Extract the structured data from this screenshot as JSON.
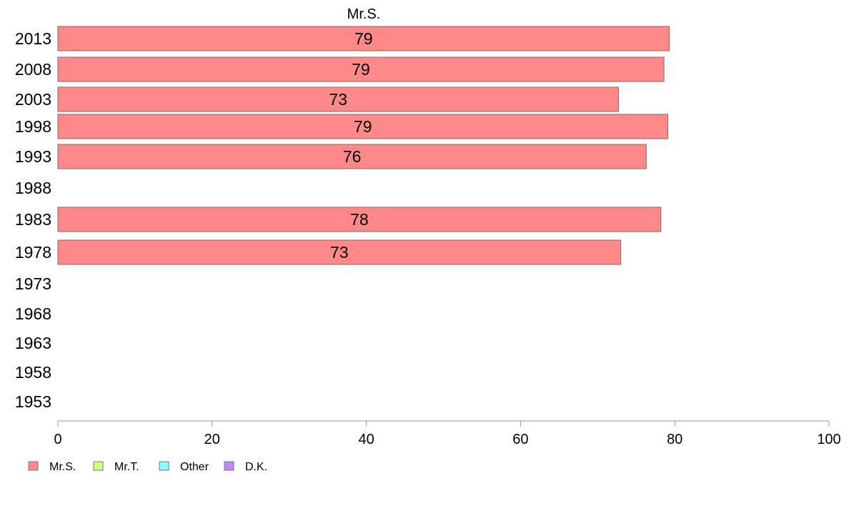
{
  "chart_data": {
    "type": "bar",
    "orientation": "horizontal",
    "title": "Mr.S.",
    "categories": [
      "2013",
      "2008",
      "2003",
      "1998",
      "1993",
      "1988",
      "1983",
      "1978",
      "1973",
      "1968",
      "1963",
      "1958",
      "1953"
    ],
    "series": [
      {
        "name": "Mr.S.",
        "color": "#ff8888",
        "values": [
          79.3,
          78.6,
          72.7,
          79.1,
          76.3,
          null,
          78.2,
          73.0,
          null,
          null,
          null,
          null,
          null
        ],
        "labels": [
          "79",
          "79",
          "73",
          "79",
          "76",
          "",
          "78",
          "73",
          "",
          "",
          "",
          "",
          ""
        ]
      }
    ],
    "xlim": [
      0,
      100
    ],
    "xticks": [
      "0",
      "20",
      "40",
      "60",
      "80",
      "100"
    ],
    "grid": false,
    "legend": {
      "position": "bottom-left",
      "entries": [
        {
          "name": "Mr.S.",
          "color": "#ff8888"
        },
        {
          "name": "Mr.T.",
          "color": "#ccff88"
        },
        {
          "name": "Other",
          "color": "#88ffff"
        },
        {
          "name": "D.K.",
          "color": "#bb88ff"
        }
      ]
    }
  }
}
